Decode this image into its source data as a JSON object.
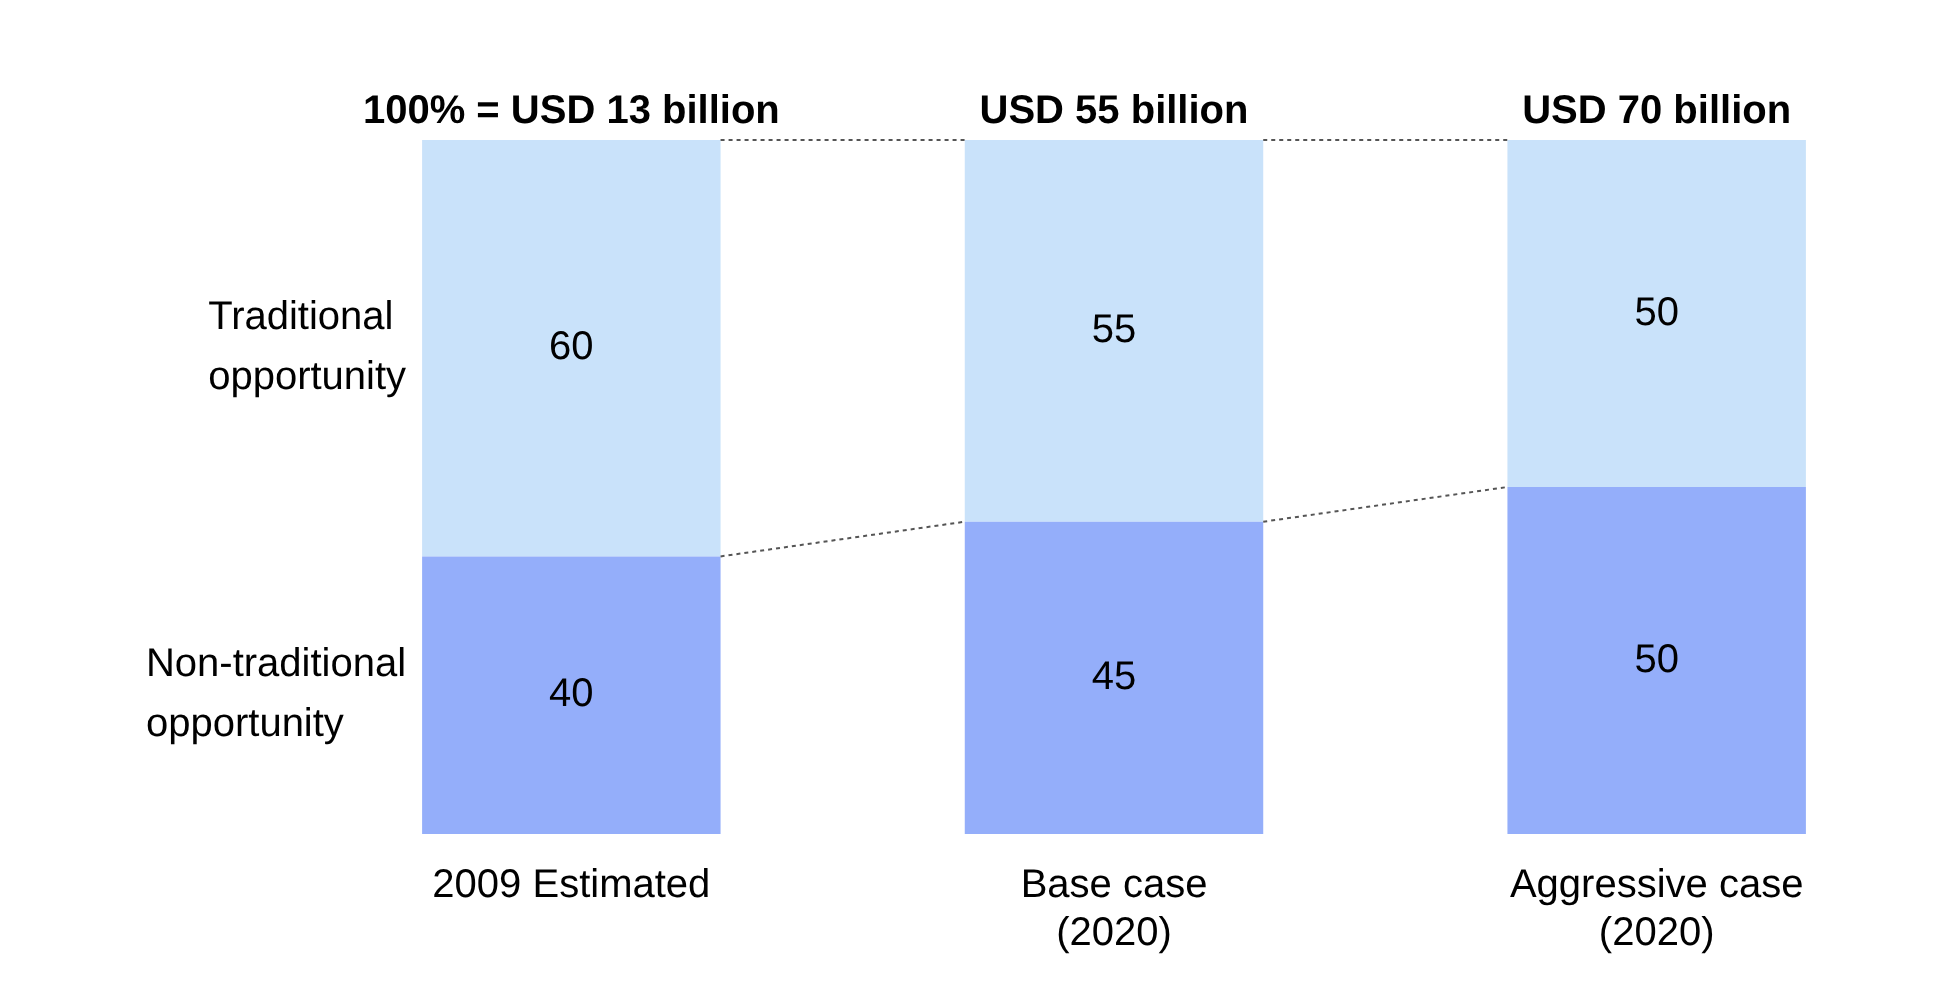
{
  "chart_data": {
    "type": "bar",
    "stacked": true,
    "categories": [
      "2009 Estimated",
      "Base case (2020)",
      "Aggressive case (2020)"
    ],
    "series": [
      {
        "name": "Non-traditional opportunity",
        "color": "#94aefa",
        "values": [
          40,
          45,
          50
        ]
      },
      {
        "name": "Traditional opportunity",
        "color": "#c9e2fa",
        "values": [
          60,
          55,
          50
        ]
      }
    ],
    "ylim": [
      0,
      100
    ],
    "tick_labels": "x",
    "grid": false,
    "legend": false,
    "data_labels": true,
    "totals": [
      "100% = USD 13 billion",
      "USD 55 billion",
      "USD 70 billion"
    ]
  }
}
